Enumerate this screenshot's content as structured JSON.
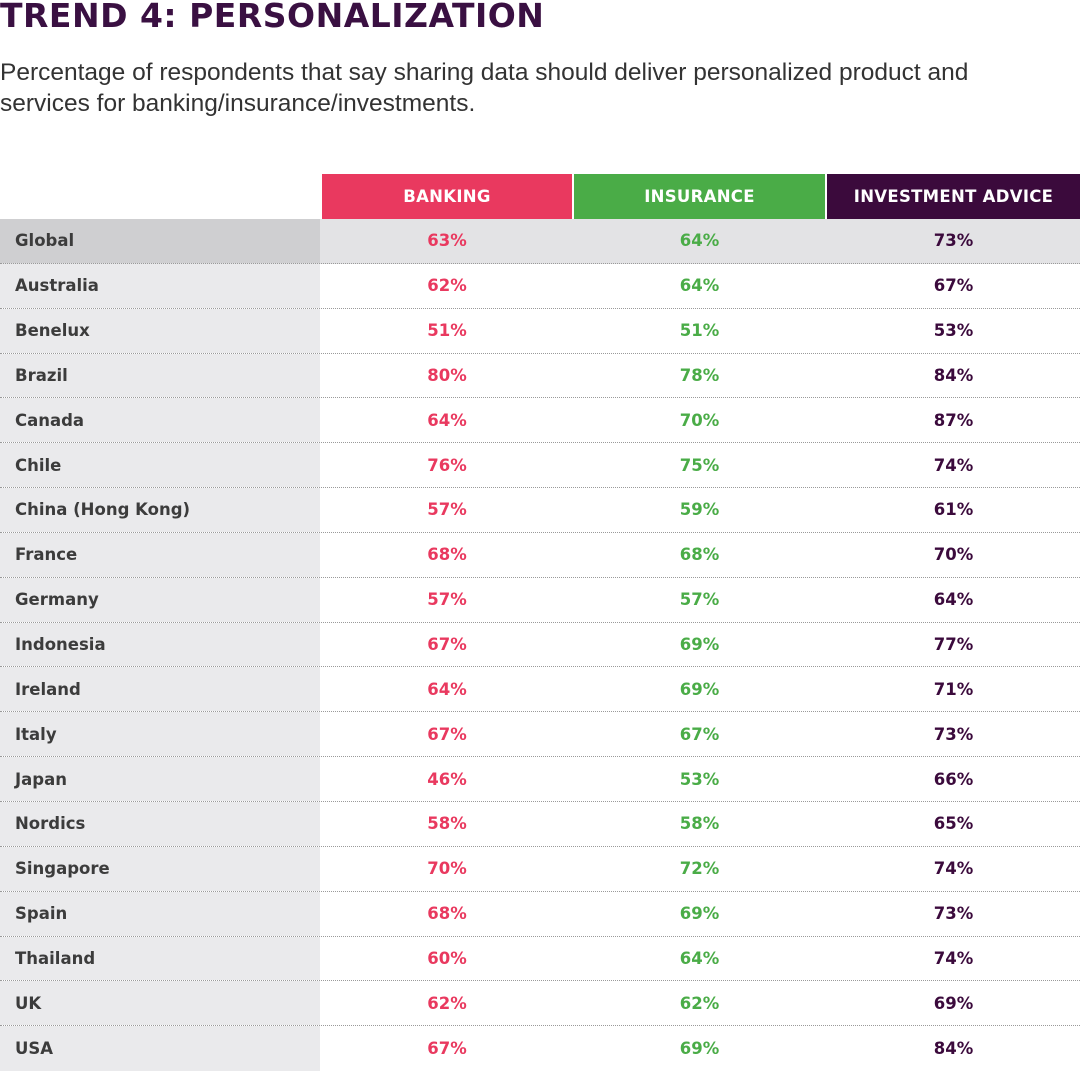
{
  "chart_data": {
    "type": "table",
    "title": "TREND 4: PERSONALIZATION",
    "subtitle": "Percentage of respondents that say sharing data should deliver personalized product and services for banking/insurance/investments.",
    "columns": [
      {
        "label": "BANKING",
        "color": "#e9395f"
      },
      {
        "label": "INSURANCE",
        "color": "#4aac47"
      },
      {
        "label": "INVESTMENT ADVICE",
        "color": "#3b0a3c"
      }
    ],
    "rows": [
      {
        "country": "Global",
        "values": [
          "63%",
          "64%",
          "73%"
        ]
      },
      {
        "country": "Australia",
        "values": [
          "62%",
          "64%",
          "67%"
        ]
      },
      {
        "country": "Benelux",
        "values": [
          "51%",
          "51%",
          "53%"
        ]
      },
      {
        "country": "Brazil",
        "values": [
          "80%",
          "78%",
          "84%"
        ]
      },
      {
        "country": "Canada",
        "values": [
          "64%",
          "70%",
          "87%"
        ]
      },
      {
        "country": "Chile",
        "values": [
          "76%",
          "75%",
          "74%"
        ]
      },
      {
        "country": "China (Hong Kong)",
        "values": [
          "57%",
          "59%",
          "61%"
        ]
      },
      {
        "country": "France",
        "values": [
          "68%",
          "68%",
          "70%"
        ]
      },
      {
        "country": "Germany",
        "values": [
          "57%",
          "57%",
          "64%"
        ]
      },
      {
        "country": "Indonesia",
        "values": [
          "67%",
          "69%",
          "77%"
        ]
      },
      {
        "country": "Ireland",
        "values": [
          "64%",
          "69%",
          "71%"
        ]
      },
      {
        "country": "Italy",
        "values": [
          "67%",
          "67%",
          "73%"
        ]
      },
      {
        "country": "Japan",
        "values": [
          "46%",
          "53%",
          "66%"
        ]
      },
      {
        "country": "Nordics",
        "values": [
          "58%",
          "58%",
          "65%"
        ]
      },
      {
        "country": "Singapore",
        "values": [
          "70%",
          "72%",
          "74%"
        ]
      },
      {
        "country": "Spain",
        "values": [
          "68%",
          "69%",
          "73%"
        ]
      },
      {
        "country": "Thailand",
        "values": [
          "60%",
          "64%",
          "74%"
        ]
      },
      {
        "country": "UK",
        "values": [
          "62%",
          "62%",
          "69%"
        ]
      },
      {
        "country": "USA",
        "values": [
          "67%",
          "69%",
          "84%"
        ]
      }
    ]
  }
}
